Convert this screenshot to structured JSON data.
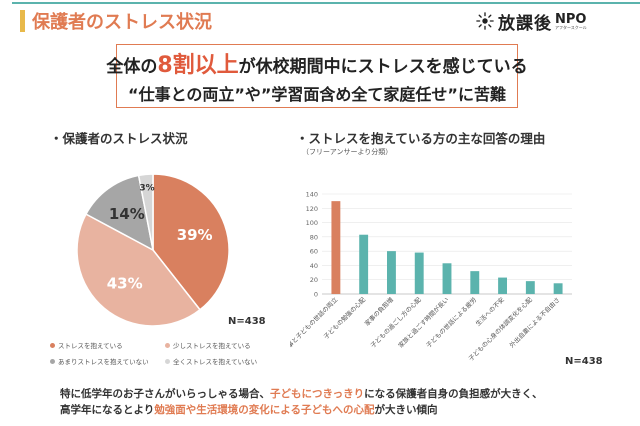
{
  "header": {
    "title": "保護者のストレス状況",
    "accent_color": "#e07b52",
    "bar_color": "#e8b94a"
  },
  "logo": {
    "icon": "sun-burst-icon",
    "text": "放課後",
    "npo": "NPO",
    "sub": "アフタースクール"
  },
  "callout": {
    "line1_pre": "全体の",
    "line1_emph": "8割以上",
    "line1_post": "が休校期間中にストレスを感じている",
    "line2": "“仕事との両立”や”学習面含め全て家庭任せ”に苦難"
  },
  "left_section": {
    "title": "・保護者のストレス状況",
    "n_label": "N=438"
  },
  "right_section": {
    "title": "・ストレスを抱えている方の主な回答の理由",
    "subtitle": "（フリーアンサーより分類）",
    "n_label": "N=438"
  },
  "footer": {
    "line1_pre": "特に低学年のお子さんがいらっしゃる場合、",
    "line1_hl": "子どもにつきっきり",
    "line1_post": "になる保護者自身の負担感が大きく、",
    "line2_pre": "高学年になるとより",
    "line2_hl": "勉強面や生活環境の変化による子どもへの心配",
    "line2_post": "が大きい傾向"
  },
  "chart_data": [
    {
      "type": "pie",
      "title": "",
      "slices": [
        {
          "label": "ストレスを抱えている",
          "value": 39,
          "display": "39%",
          "color": "#d9805f"
        },
        {
          "label": "少しストレスを抱えている",
          "value": 43,
          "display": "43%",
          "color": "#e8b3a0"
        },
        {
          "label": "あまりストレスを抱えていない",
          "value": 14,
          "display": "14%",
          "color": "#a6a6a6"
        },
        {
          "label": "全くストレスを抱えていない",
          "value": 3,
          "display": "3%",
          "color": "#d6d6d6"
        }
      ],
      "legend_placement": "bottom"
    },
    {
      "type": "bar",
      "title": "",
      "categories": [
        "仕事と子どもの世話の両立",
        "子どもの勉強の心配",
        "家事の負担増",
        "子どもの過ごし方の心配",
        "家族と過ごす時間が長い",
        "子どもの世話による疲労",
        "生活への不安",
        "子どもの心身の体調変化を心配",
        "外出自粛による不自由さ"
      ],
      "values": [
        130,
        83,
        60,
        58,
        43,
        32,
        23,
        18,
        15
      ],
      "ylim": [
        0,
        140
      ],
      "yticks": [
        0,
        20,
        40,
        60,
        80,
        100,
        120,
        140
      ],
      "highlight_color": "#d9805f",
      "bar_color": "#5bb3ad",
      "grid": true
    }
  ]
}
